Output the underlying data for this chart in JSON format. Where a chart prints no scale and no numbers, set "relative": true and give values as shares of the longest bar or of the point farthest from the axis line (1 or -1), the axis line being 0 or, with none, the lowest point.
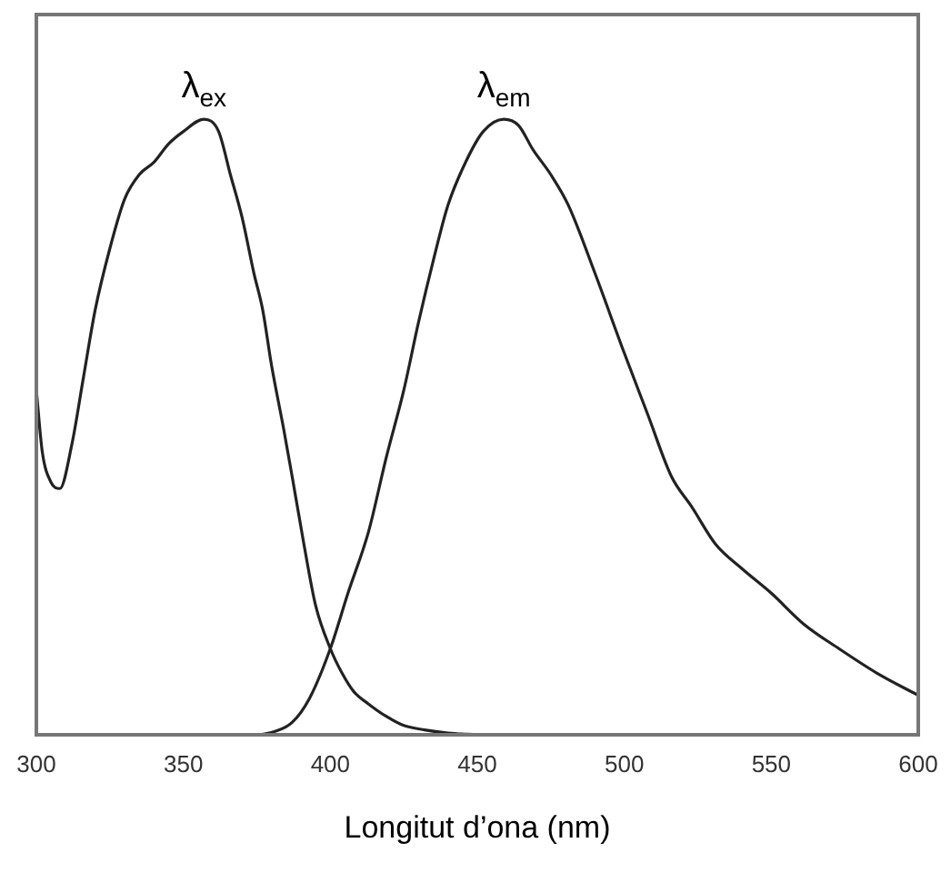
{
  "chart_data": {
    "type": "line",
    "relative": true,
    "xlabel": "Longitut d’ona (nm)",
    "xlim": [
      300,
      600
    ],
    "xticks": [
      300,
      350,
      400,
      450,
      500,
      550,
      600
    ],
    "grid": false,
    "legend": false,
    "marker": "none",
    "line_style": "solid",
    "series": [
      {
        "name": "λ$_{ex}$",
        "color": "#222222",
        "x": [
          300,
          302,
          305,
          308,
          312,
          316,
          320,
          325,
          330,
          335,
          340,
          345,
          350,
          357,
          362,
          366,
          370,
          374,
          377,
          380,
          384,
          387,
          391,
          395,
          400,
          404,
          408,
          413,
          419,
          425,
          432,
          440,
          450
        ],
        "values": [
          0.56,
          0.46,
          0.41,
          0.4,
          0.47,
          0.58,
          0.69,
          0.79,
          0.87,
          0.91,
          0.93,
          0.96,
          0.98,
          1,
          0.98,
          0.91,
          0.84,
          0.75,
          0.69,
          0.6,
          0.5,
          0.42,
          0.31,
          0.21,
          0.14,
          0.1,
          0.07,
          0.05,
          0.03,
          0.015,
          0.008,
          0.003,
          0
        ]
      },
      {
        "name": "λ$_{em}$",
        "color": "#222222",
        "x": [
          376,
          381,
          387,
          393,
          400,
          406,
          413,
          419,
          425,
          430,
          435,
          440,
          446,
          452,
          459,
          464,
          469,
          475,
          481,
          490,
          500,
          508,
          516,
          523,
          531,
          540,
          550,
          561,
          573,
          586,
          600
        ],
        "values": [
          0,
          0.005,
          0.02,
          0.06,
          0.14,
          0.23,
          0.33,
          0.45,
          0.56,
          0.67,
          0.77,
          0.86,
          0.93,
          0.98,
          1,
          0.99,
          0.95,
          0.91,
          0.86,
          0.75,
          0.62,
          0.52,
          0.42,
          0.37,
          0.31,
          0.27,
          0.23,
          0.18,
          0.14,
          0.1,
          0.064
        ]
      }
    ]
  }
}
